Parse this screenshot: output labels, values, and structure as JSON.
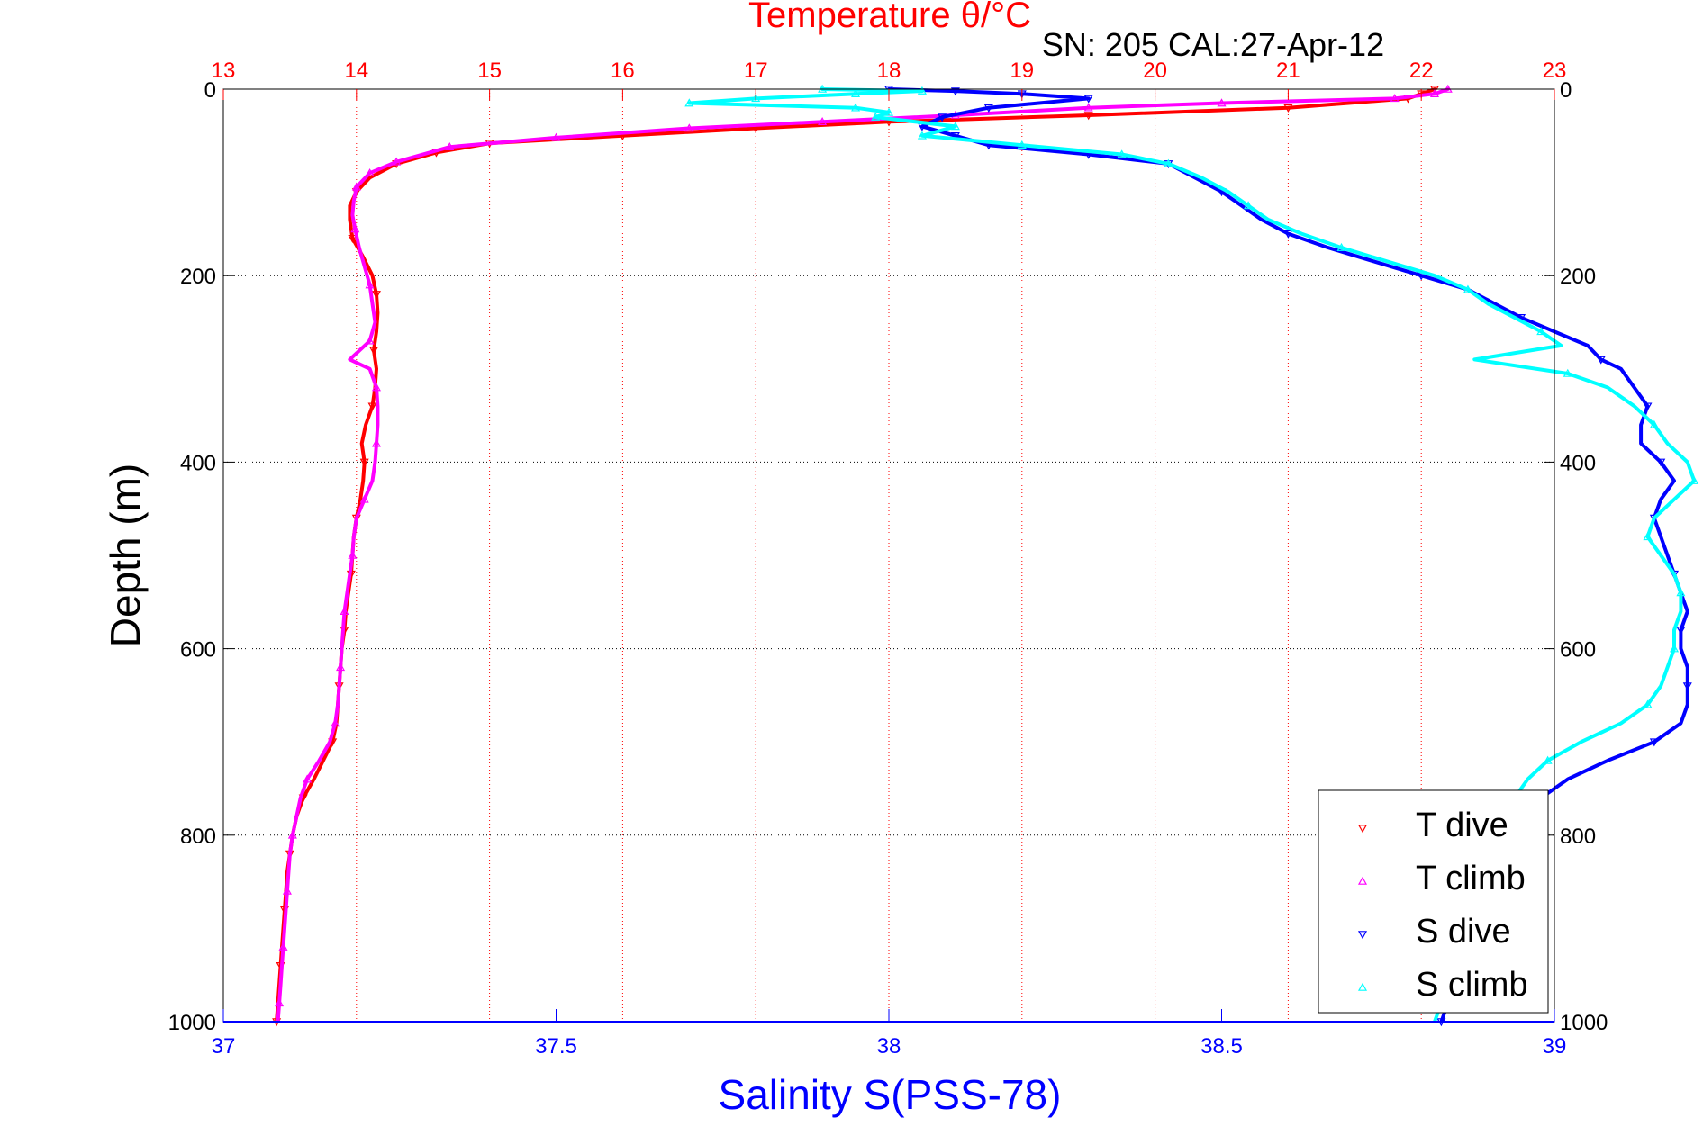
{
  "chart_data": {
    "type": "scatter",
    "title": "Temperature θ/°C",
    "subtitle": "SN: 205  CAL:27-Apr-12",
    "ylabel": "Depth (m)",
    "xlabel": "Salinity S(PSS-78)",
    "y_axis": {
      "min": 0,
      "max": 1000,
      "inverted": true,
      "ticks": [
        0,
        200,
        400,
        600,
        800,
        1000
      ]
    },
    "x_top_axis": {
      "label": "Temperature θ/°C",
      "min": 13,
      "max": 23,
      "ticks": [
        13,
        14,
        15,
        16,
        17,
        18,
        19,
        20,
        21,
        22,
        23
      ]
    },
    "x_bottom_axis": {
      "label": "Salinity S(PSS-78)",
      "min": 37,
      "max": 39,
      "ticks": [
        37,
        37.5,
        38,
        38.5,
        39
      ]
    },
    "grid": true,
    "legend_position": "bottom-right",
    "colors": {
      "title": "#ff0000",
      "xlabel": "#0000ff",
      "temp_grid": "#ff0000",
      "depth_grid": "#000000"
    },
    "series": [
      {
        "name": "T dive",
        "axis": "temperature",
        "color": "#ff0000",
        "marker": "triangle-down",
        "points": [
          [
            22.1,
            0
          ],
          [
            22.0,
            5
          ],
          [
            21.9,
            10
          ],
          [
            21.0,
            20
          ],
          [
            19.5,
            28
          ],
          [
            18.0,
            35
          ],
          [
            17.0,
            42
          ],
          [
            16.0,
            50
          ],
          [
            15.0,
            58
          ],
          [
            14.6,
            68
          ],
          [
            14.3,
            80
          ],
          [
            14.1,
            95
          ],
          [
            14.0,
            110
          ],
          [
            13.95,
            125
          ],
          [
            13.95,
            140
          ],
          [
            13.97,
            160
          ],
          [
            14.05,
            180
          ],
          [
            14.12,
            200
          ],
          [
            14.15,
            220
          ],
          [
            14.16,
            240
          ],
          [
            14.15,
            260
          ],
          [
            14.13,
            280
          ],
          [
            14.15,
            300
          ],
          [
            14.14,
            320
          ],
          [
            14.12,
            340
          ],
          [
            14.07,
            360
          ],
          [
            14.04,
            380
          ],
          [
            14.06,
            400
          ],
          [
            14.05,
            420
          ],
          [
            14.03,
            440
          ],
          [
            14.0,
            460
          ],
          [
            13.98,
            480
          ],
          [
            13.97,
            500
          ],
          [
            13.96,
            520
          ],
          [
            13.94,
            540
          ],
          [
            13.92,
            560
          ],
          [
            13.91,
            580
          ],
          [
            13.89,
            600
          ],
          [
            13.88,
            620
          ],
          [
            13.87,
            640
          ],
          [
            13.86,
            660
          ],
          [
            13.85,
            680
          ],
          [
            13.82,
            700
          ],
          [
            13.75,
            720
          ],
          [
            13.68,
            740
          ],
          [
            13.6,
            760
          ],
          [
            13.55,
            780
          ],
          [
            13.52,
            800
          ],
          [
            13.5,
            820
          ],
          [
            13.48,
            840
          ],
          [
            13.47,
            860
          ],
          [
            13.46,
            880
          ],
          [
            13.45,
            900
          ],
          [
            13.44,
            920
          ],
          [
            13.43,
            940
          ],
          [
            13.42,
            960
          ],
          [
            13.41,
            980
          ],
          [
            13.4,
            1000
          ]
        ]
      },
      {
        "name": "T climb",
        "axis": "temperature",
        "color": "#ff00ff",
        "marker": "triangle-up",
        "points": [
          [
            22.2,
            0
          ],
          [
            22.1,
            5
          ],
          [
            21.8,
            10
          ],
          [
            20.5,
            15
          ],
          [
            19.5,
            20
          ],
          [
            18.5,
            28
          ],
          [
            17.5,
            35
          ],
          [
            16.5,
            42
          ],
          [
            15.5,
            52
          ],
          [
            14.7,
            62
          ],
          [
            14.3,
            78
          ],
          [
            14.1,
            90
          ],
          [
            14.0,
            105
          ],
          [
            13.98,
            120
          ],
          [
            13.97,
            135
          ],
          [
            13.99,
            150
          ],
          [
            14.02,
            170
          ],
          [
            14.06,
            190
          ],
          [
            14.1,
            210
          ],
          [
            14.12,
            230
          ],
          [
            14.14,
            250
          ],
          [
            14.1,
            270
          ],
          [
            13.95,
            290
          ],
          [
            14.1,
            300
          ],
          [
            14.15,
            320
          ],
          [
            14.16,
            340
          ],
          [
            14.16,
            360
          ],
          [
            14.15,
            380
          ],
          [
            14.14,
            400
          ],
          [
            14.12,
            420
          ],
          [
            14.06,
            440
          ],
          [
            14.0,
            460
          ],
          [
            13.98,
            480
          ],
          [
            13.97,
            500
          ],
          [
            13.95,
            520
          ],
          [
            13.93,
            540
          ],
          [
            13.91,
            560
          ],
          [
            13.9,
            580
          ],
          [
            13.89,
            600
          ],
          [
            13.88,
            620
          ],
          [
            13.87,
            640
          ],
          [
            13.86,
            660
          ],
          [
            13.84,
            680
          ],
          [
            13.8,
            700
          ],
          [
            13.72,
            720
          ],
          [
            13.63,
            740
          ],
          [
            13.58,
            760
          ],
          [
            13.55,
            780
          ],
          [
            13.52,
            800
          ],
          [
            13.5,
            820
          ],
          [
            13.49,
            840
          ],
          [
            13.48,
            860
          ],
          [
            13.47,
            880
          ],
          [
            13.46,
            900
          ],
          [
            13.45,
            920
          ],
          [
            13.44,
            940
          ],
          [
            13.43,
            960
          ],
          [
            13.42,
            980
          ],
          [
            13.41,
            1000
          ]
        ]
      },
      {
        "name": "S dive",
        "axis": "salinity",
        "color": "#0000ff",
        "marker": "triangle-down",
        "points": [
          [
            38.0,
            0
          ],
          [
            38.1,
            2
          ],
          [
            38.2,
            5
          ],
          [
            38.3,
            10
          ],
          [
            38.15,
            20
          ],
          [
            38.08,
            30
          ],
          [
            38.05,
            40
          ],
          [
            38.1,
            50
          ],
          [
            38.15,
            60
          ],
          [
            38.3,
            70
          ],
          [
            38.42,
            80
          ],
          [
            38.46,
            95
          ],
          [
            38.5,
            110
          ],
          [
            38.53,
            125
          ],
          [
            38.56,
            140
          ],
          [
            38.6,
            155
          ],
          [
            38.66,
            170
          ],
          [
            38.73,
            185
          ],
          [
            38.8,
            200
          ],
          [
            38.87,
            215
          ],
          [
            38.91,
            230
          ],
          [
            38.95,
            245
          ],
          [
            39.0,
            260
          ],
          [
            39.05,
            275
          ],
          [
            39.07,
            290
          ],
          [
            39.1,
            300
          ],
          [
            39.12,
            320
          ],
          [
            39.14,
            340
          ],
          [
            39.13,
            360
          ],
          [
            39.13,
            380
          ],
          [
            39.16,
            400
          ],
          [
            39.18,
            420
          ],
          [
            39.16,
            440
          ],
          [
            39.15,
            460
          ],
          [
            39.16,
            480
          ],
          [
            39.17,
            500
          ],
          [
            39.18,
            520
          ],
          [
            39.19,
            540
          ],
          [
            39.2,
            560
          ],
          [
            39.19,
            580
          ],
          [
            39.19,
            600
          ],
          [
            39.2,
            620
          ],
          [
            39.2,
            640
          ],
          [
            39.2,
            660
          ],
          [
            39.19,
            680
          ],
          [
            39.15,
            700
          ],
          [
            39.08,
            720
          ],
          [
            39.02,
            740
          ],
          [
            38.98,
            760
          ],
          [
            38.95,
            780
          ],
          [
            38.93,
            800
          ],
          [
            38.92,
            820
          ],
          [
            38.91,
            840
          ],
          [
            38.9,
            860
          ],
          [
            38.89,
            880
          ],
          [
            38.88,
            900
          ],
          [
            38.87,
            920
          ],
          [
            38.86,
            940
          ],
          [
            38.85,
            960
          ],
          [
            38.84,
            980
          ],
          [
            38.83,
            1000
          ]
        ]
      },
      {
        "name": "S climb",
        "axis": "salinity",
        "color": "#00ffff",
        "marker": "triangle-up",
        "points": [
          [
            37.9,
            0
          ],
          [
            38.05,
            2
          ],
          [
            37.95,
            5
          ],
          [
            37.8,
            10
          ],
          [
            37.7,
            15
          ],
          [
            37.95,
            20
          ],
          [
            38.0,
            25
          ],
          [
            37.98,
            30
          ],
          [
            38.1,
            40
          ],
          [
            38.05,
            50
          ],
          [
            38.2,
            60
          ],
          [
            38.35,
            70
          ],
          [
            38.42,
            80
          ],
          [
            38.47,
            95
          ],
          [
            38.51,
            110
          ],
          [
            38.54,
            125
          ],
          [
            38.57,
            140
          ],
          [
            38.62,
            155
          ],
          [
            38.68,
            170
          ],
          [
            38.75,
            185
          ],
          [
            38.82,
            200
          ],
          [
            38.87,
            215
          ],
          [
            38.9,
            230
          ],
          [
            38.94,
            245
          ],
          [
            38.98,
            260
          ],
          [
            39.01,
            275
          ],
          [
            38.88,
            290
          ],
          [
            39.02,
            305
          ],
          [
            39.08,
            320
          ],
          [
            39.12,
            340
          ],
          [
            39.15,
            360
          ],
          [
            39.17,
            380
          ],
          [
            39.2,
            400
          ],
          [
            39.21,
            420
          ],
          [
            39.18,
            440
          ],
          [
            39.15,
            460
          ],
          [
            39.14,
            480
          ],
          [
            39.16,
            500
          ],
          [
            39.18,
            520
          ],
          [
            39.19,
            540
          ],
          [
            39.19,
            560
          ],
          [
            39.18,
            580
          ],
          [
            39.18,
            600
          ],
          [
            39.17,
            620
          ],
          [
            39.16,
            640
          ],
          [
            39.14,
            660
          ],
          [
            39.1,
            680
          ],
          [
            39.04,
            700
          ],
          [
            38.99,
            720
          ],
          [
            38.96,
            740
          ],
          [
            38.94,
            760
          ],
          [
            38.93,
            780
          ],
          [
            38.91,
            800
          ],
          [
            38.9,
            820
          ],
          [
            38.89,
            840
          ],
          [
            38.89,
            860
          ],
          [
            38.88,
            880
          ],
          [
            38.87,
            900
          ],
          [
            38.86,
            920
          ],
          [
            38.85,
            940
          ],
          [
            38.84,
            960
          ],
          [
            38.83,
            980
          ],
          [
            38.82,
            1000
          ]
        ]
      }
    ]
  }
}
